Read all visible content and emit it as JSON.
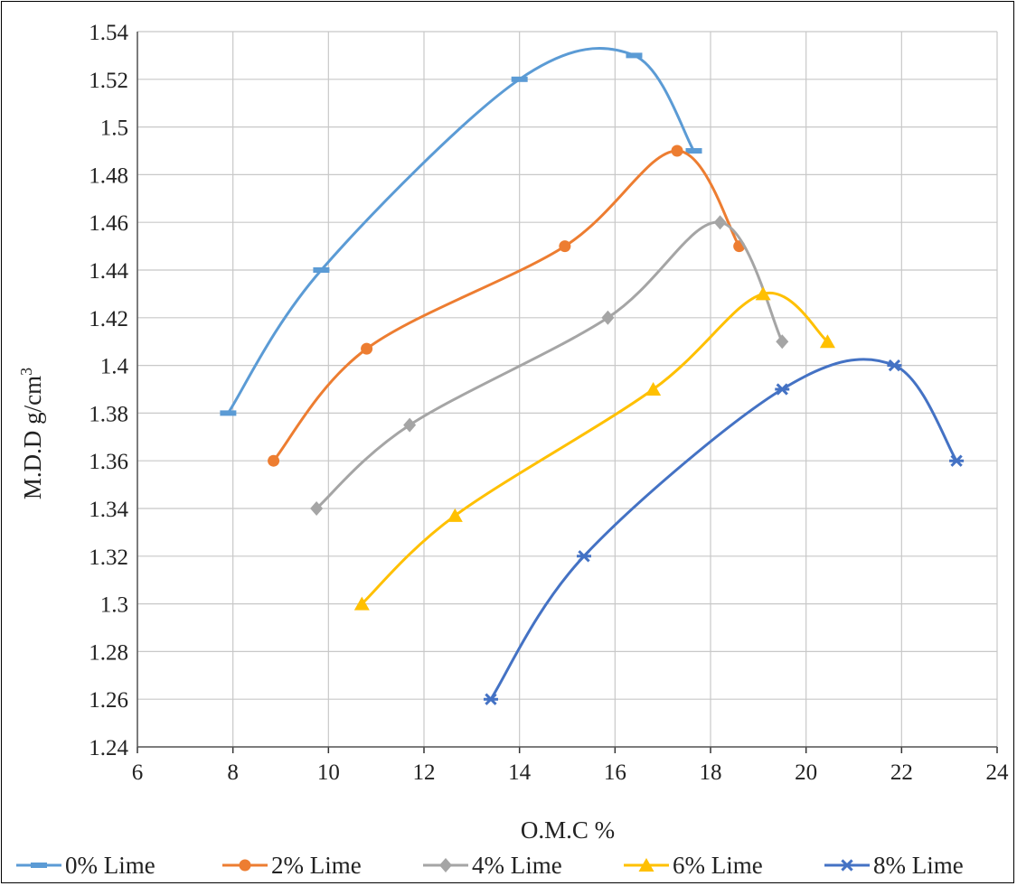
{
  "chart_data": {
    "type": "line",
    "xlabel": "O.M.C  %",
    "ylabel": "M.D.D  g/cm",
    "ylabel_sup": "3",
    "xlim": [
      6,
      24
    ],
    "ylim": [
      1.24,
      1.54
    ],
    "x_ticks": [
      6,
      8,
      10,
      12,
      14,
      16,
      18,
      20,
      22,
      24
    ],
    "y_ticks": [
      1.24,
      1.26,
      1.28,
      1.3,
      1.32,
      1.34,
      1.36,
      1.38,
      1.4,
      1.42,
      1.44,
      1.46,
      1.48,
      1.5,
      1.52,
      1.54
    ],
    "grid": true,
    "legend_position": "bottom",
    "series": [
      {
        "name": "0% Lime",
        "color": "#5b9bd5",
        "marker": "dash",
        "points": [
          [
            7.9,
            1.38
          ],
          [
            9.85,
            1.44
          ],
          [
            14.0,
            1.52
          ],
          [
            16.4,
            1.53
          ],
          [
            17.65,
            1.49
          ]
        ]
      },
      {
        "name": "2% Lime",
        "color": "#ed7d31",
        "marker": "circle",
        "points": [
          [
            8.85,
            1.36
          ],
          [
            10.8,
            1.407
          ],
          [
            14.95,
            1.45
          ],
          [
            17.3,
            1.49
          ],
          [
            18.6,
            1.45
          ]
        ]
      },
      {
        "name": "4% Lime",
        "color": "#a5a5a5",
        "marker": "diamond",
        "points": [
          [
            9.75,
            1.34
          ],
          [
            11.7,
            1.375
          ],
          [
            15.85,
            1.42
          ],
          [
            18.2,
            1.46
          ],
          [
            19.5,
            1.41
          ]
        ]
      },
      {
        "name": "6% Lime",
        "color": "#ffc000",
        "marker": "triangle",
        "points": [
          [
            10.7,
            1.3
          ],
          [
            12.65,
            1.337
          ],
          [
            16.8,
            1.39
          ],
          [
            19.1,
            1.43
          ],
          [
            20.45,
            1.41
          ]
        ]
      },
      {
        "name": "8% Lime",
        "color": "#4472c4",
        "marker": "star",
        "points": [
          [
            13.4,
            1.26
          ],
          [
            15.35,
            1.32
          ],
          [
            19.5,
            1.39
          ],
          [
            21.85,
            1.4
          ],
          [
            23.15,
            1.36
          ]
        ]
      }
    ]
  }
}
